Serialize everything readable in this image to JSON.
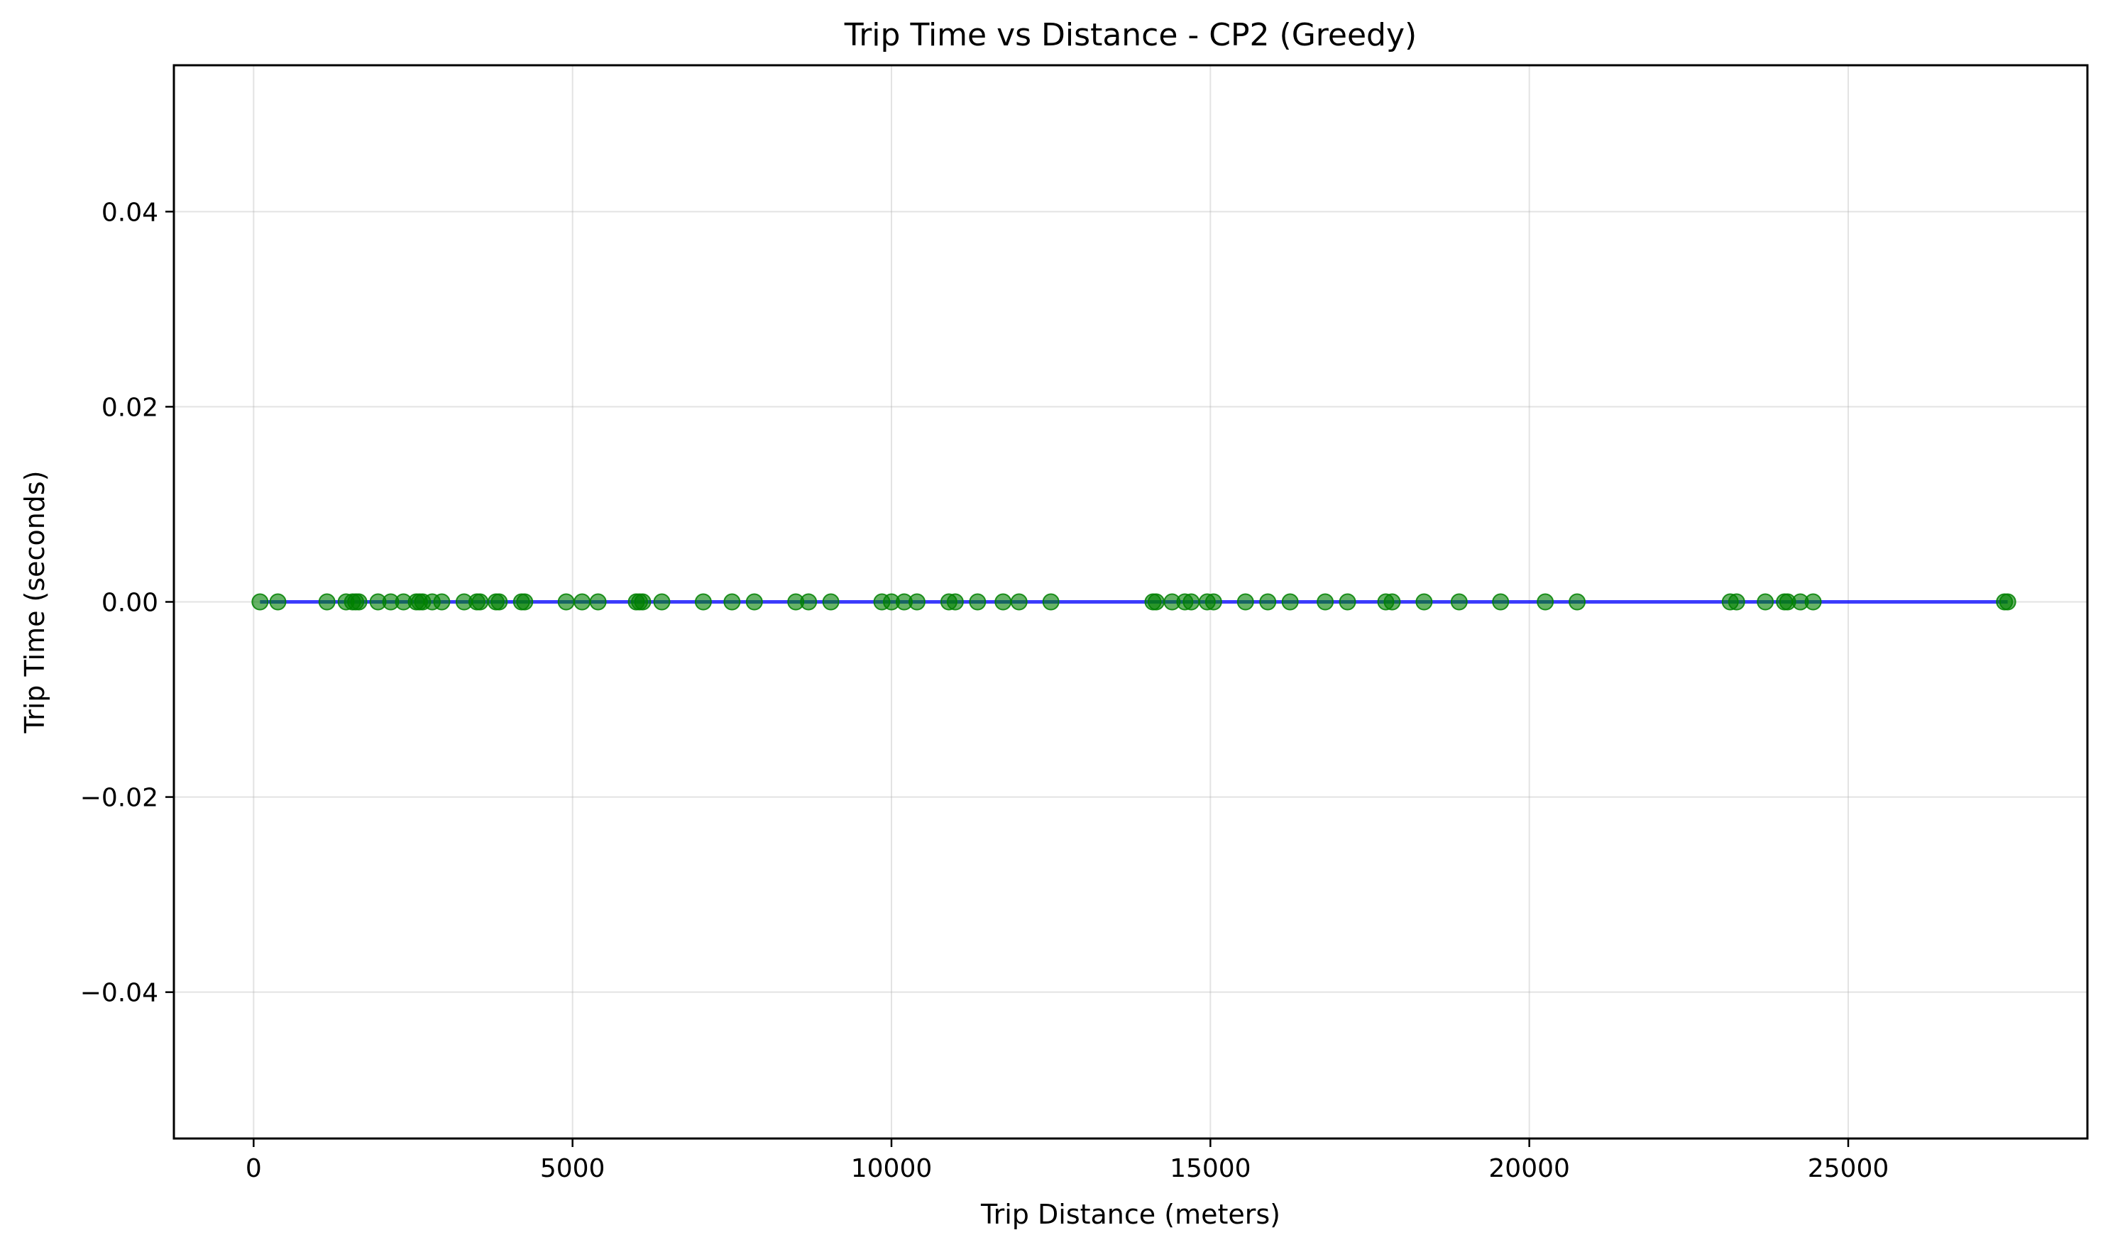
{
  "chart_data": {
    "type": "scatter",
    "title": "Trip Time vs Distance - CP2 (Greedy)",
    "xlabel": "Trip Distance (meters)",
    "ylabel": "Trip Time (seconds)",
    "xlim": [
      -1250,
      28750
    ],
    "ylim": [
      -0.055,
      0.055
    ],
    "xticks": [
      0,
      5000,
      10000,
      15000,
      20000,
      25000
    ],
    "xtick_labels": [
      "0",
      "5000",
      "10000",
      "15000",
      "20000",
      "25000"
    ],
    "yticks": [
      -0.04,
      -0.02,
      0.0,
      0.02,
      0.04
    ],
    "ytick_labels": [
      "−0.04",
      "−0.02",
      "0.00",
      "0.02",
      "0.04"
    ],
    "grid": true,
    "series": [
      {
        "kind": "scatter",
        "color": "#008000",
        "x": [
          100,
          380,
          1150,
          1450,
          1550,
          1600,
          1650,
          1950,
          2150,
          2350,
          2550,
          2600,
          2650,
          2800,
          2950,
          3300,
          3500,
          3550,
          3800,
          3850,
          4200,
          4250,
          4900,
          5150,
          5400,
          6000,
          6050,
          6100,
          6400,
          7050,
          7500,
          7850,
          8500,
          8700,
          9050,
          9850,
          10000,
          10200,
          10400,
          10900,
          11000,
          11350,
          11750,
          12000,
          12500,
          14100,
          14150,
          14400,
          14600,
          14700,
          14950,
          15050,
          15550,
          15900,
          16250,
          16800,
          17150,
          17750,
          17850,
          18350,
          18900,
          19550,
          20250,
          20750,
          23150,
          23250,
          23700,
          24000,
          24050,
          24250,
          24450,
          27450,
          27500
        ],
        "y": [
          0,
          0,
          0,
          0,
          0,
          0,
          0,
          0,
          0,
          0,
          0,
          0,
          0,
          0,
          0,
          0,
          0,
          0,
          0,
          0,
          0,
          0,
          0,
          0,
          0,
          0,
          0,
          0,
          0,
          0,
          0,
          0,
          0,
          0,
          0,
          0,
          0,
          0,
          0,
          0,
          0,
          0,
          0,
          0,
          0,
          0,
          0,
          0,
          0,
          0,
          0,
          0,
          0,
          0,
          0,
          0,
          0,
          0,
          0,
          0,
          0,
          0,
          0,
          0,
          0,
          0,
          0,
          0,
          0,
          0,
          0,
          0,
          0
        ]
      },
      {
        "kind": "line",
        "color": "#0000ff",
        "x": [
          100,
          27500
        ],
        "y": [
          0,
          0
        ]
      }
    ]
  }
}
